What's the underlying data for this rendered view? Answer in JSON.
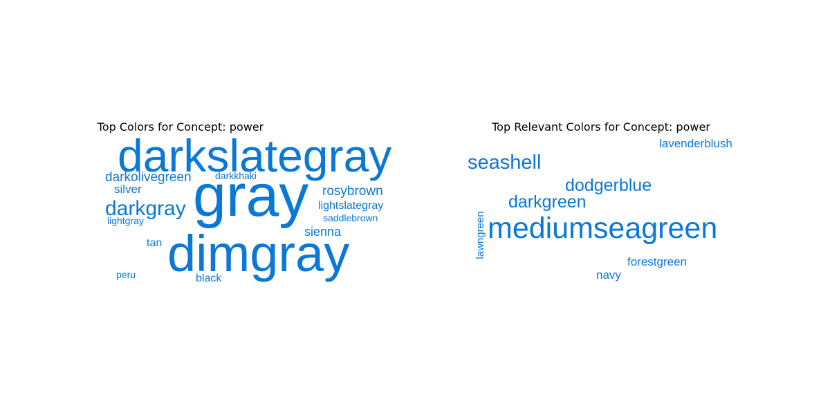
{
  "chart_data": [
    {
      "type": "wordcloud",
      "title": "Top Colors for Concept: power",
      "color": "#0a78d7",
      "words": [
        {
          "text": "darkslategray",
          "weight": 0.92
        },
        {
          "text": "gray",
          "weight": 1.0
        },
        {
          "text": "dimgray",
          "weight": 0.98
        },
        {
          "text": "darkolivegreen",
          "weight": 0.28
        },
        {
          "text": "darkkhaki",
          "weight": 0.18
        },
        {
          "text": "silver",
          "weight": 0.24
        },
        {
          "text": "rosybrown",
          "weight": 0.27
        },
        {
          "text": "darkgray",
          "weight": 0.42
        },
        {
          "text": "lightslategray",
          "weight": 0.22
        },
        {
          "text": "saddlebrown",
          "weight": 0.18
        },
        {
          "text": "lightgray",
          "weight": 0.18
        },
        {
          "text": "sienna",
          "weight": 0.25
        },
        {
          "text": "tan",
          "weight": 0.22
        },
        {
          "text": "peru",
          "weight": 0.17
        },
        {
          "text": "black",
          "weight": 0.2
        }
      ]
    },
    {
      "type": "wordcloud",
      "title": "Top Relevant Colors for Concept: power",
      "color": "#0a78d7",
      "words": [
        {
          "text": "lavenderblush",
          "weight": 0.26
        },
        {
          "text": "seashell",
          "weight": 0.52
        },
        {
          "text": "dodgerblue",
          "weight": 0.46
        },
        {
          "text": "darkgreen",
          "weight": 0.46
        },
        {
          "text": "lawngreen",
          "weight": 0.25
        },
        {
          "text": "mediumseagreen",
          "weight": 1.0
        },
        {
          "text": "forestgreen",
          "weight": 0.27
        },
        {
          "text": "navy",
          "weight": 0.26
        }
      ]
    }
  ]
}
